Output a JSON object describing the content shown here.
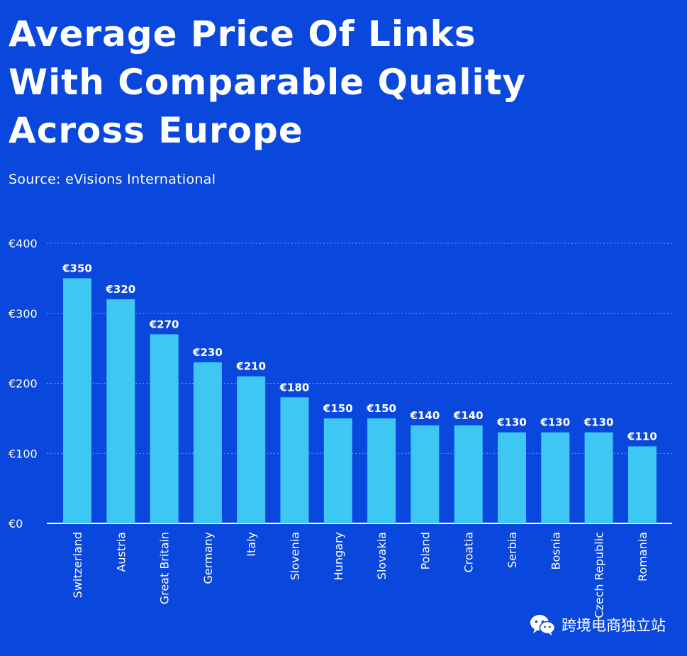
{
  "title_lines": [
    "Average Price Of Links",
    "With Comparable Quality",
    "Across Europe"
  ],
  "subtitle": "Source: eVisions International",
  "watermark": "跨境电商独立站",
  "colors": {
    "background": "#0a47dc",
    "bar": "#3ec7f2",
    "grid": "#6c97ee",
    "text": "#ffffff"
  },
  "chart_data": {
    "type": "bar",
    "title": "Average Price Of Links With Comparable Quality Across Europe",
    "subtitle": "Source: eVisions International",
    "xlabel": "",
    "ylabel": "",
    "ylim": [
      0,
      400
    ],
    "yticks": [
      0,
      100,
      200,
      300,
      400
    ],
    "ytick_labels": [
      "€0",
      "€100",
      "€200",
      "€300",
      "€400"
    ],
    "grid": true,
    "categories": [
      "Switzerland",
      "Austria",
      "Great Britain",
      "Germany",
      "Italy",
      "Slovenia",
      "Hungary",
      "Slovakia",
      "Poland",
      "Croatia",
      "Serbia",
      "Bosnia",
      "Czech Republic",
      "Romania"
    ],
    "values": [
      350,
      320,
      270,
      230,
      210,
      180,
      150,
      150,
      140,
      140,
      130,
      130,
      130,
      110
    ],
    "data_labels": [
      "€350",
      "€320",
      "€270",
      "€230",
      "€210",
      "€180",
      "€150",
      "€150",
      "€140",
      "€140",
      "€130",
      "€130",
      "€130",
      "€110"
    ]
  }
}
